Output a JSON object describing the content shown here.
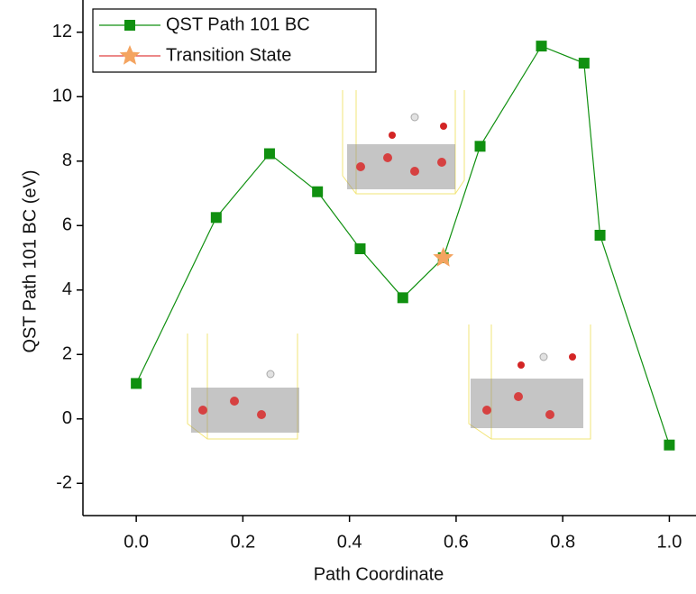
{
  "chart_data": {
    "type": "line",
    "x_label": "Path Coordinate",
    "y_label": "QST Path 101 BC (eV)",
    "xlim": [
      -0.1,
      1.05
    ],
    "ylim": [
      -3,
      13
    ],
    "xticks": [
      {
        "value": 0,
        "label": "0.0"
      },
      0.2,
      0.4,
      0.6,
      0.8,
      {
        "value": 1,
        "label": "1.0"
      }
    ],
    "yticks": [
      -2,
      0,
      2,
      4,
      6,
      8,
      10,
      12
    ],
    "grid": false,
    "legend": "upper left",
    "series": [
      {
        "name": "QST Path 101 BC",
        "color": "#109010",
        "marker": "square",
        "x": [
          0,
          0.15,
          0.25,
          0.34,
          0.42,
          0.5,
          0.576,
          0.645,
          0.76,
          0.84,
          0.87,
          1.0
        ],
        "values": [
          1.1,
          6.25,
          8.23,
          7.05,
          5.28,
          3.76,
          5.0,
          8.46,
          11.57,
          11.04,
          5.7,
          -0.81
        ]
      },
      {
        "name": "Transition State",
        "color": "#f4a460",
        "line_color": "#e04040",
        "marker": "star",
        "x": [
          0.576
        ],
        "values": [
          5.0
        ]
      }
    ]
  }
}
